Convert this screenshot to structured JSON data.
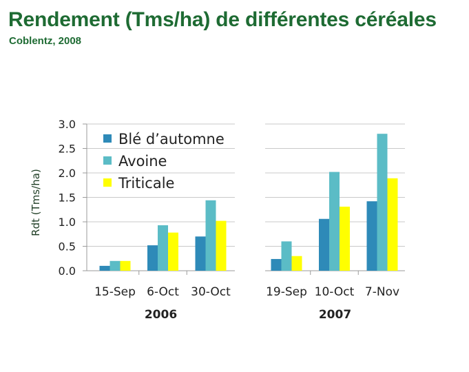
{
  "header": {
    "title": "Rendement (Tms/ha) de différentes céréales",
    "subtitle": "Coblentz, 2008"
  },
  "chart_data": {
    "type": "bar",
    "ylabel": "Rdt (Tms/ha)",
    "ylim": [
      0,
      3.0
    ],
    "yticks": [
      "0.0",
      "0.5",
      "1.0",
      "1.5",
      "2.0",
      "2.5",
      "3.0"
    ],
    "grid": true,
    "legend_position": "top-left",
    "panels": [
      {
        "group_label": "2006",
        "categories": [
          "15-Sep",
          "6-Oct",
          "30-Oct"
        ],
        "series": [
          {
            "name": "Blé d’automne",
            "color": "#2e8ab8",
            "values": [
              0.1,
              0.52,
              0.7
            ]
          },
          {
            "name": "Avoine",
            "color": "#5bbcc6",
            "values": [
              0.2,
              0.93,
              1.44
            ]
          },
          {
            "name": "Triticale",
            "color": "#ffff00",
            "values": [
              0.2,
              0.78,
              1.02
            ]
          }
        ]
      },
      {
        "group_label": "2007",
        "categories": [
          "19-Sep",
          "10-Oct",
          "7-Nov"
        ],
        "series": [
          {
            "name": "Blé d’automne",
            "color": "#2e8ab8",
            "values": [
              0.24,
              1.06,
              1.42
            ]
          },
          {
            "name": "Avoine",
            "color": "#5bbcc6",
            "values": [
              0.6,
              2.02,
              2.8
            ]
          },
          {
            "name": "Triticale",
            "color": "#ffff00",
            "values": [
              0.3,
              1.31,
              1.89
            ]
          }
        ]
      }
    ]
  }
}
